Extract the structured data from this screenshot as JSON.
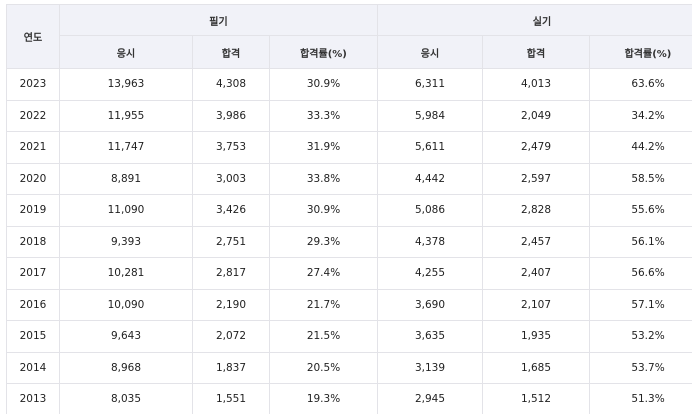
{
  "table": {
    "header": {
      "year": "연도",
      "written": "필기",
      "practical": "실기",
      "sub": [
        "응시",
        "합격",
        "합격률(%)",
        "응시",
        "합격",
        "합격률(%)"
      ]
    },
    "rows": [
      [
        "2023",
        "13,963",
        "4,308",
        "30.9%",
        "6,311",
        "4,013",
        "63.6%"
      ],
      [
        "2022",
        "11,955",
        "3,986",
        "33.3%",
        "5,984",
        "2,049",
        "34.2%"
      ],
      [
        "2021",
        "11,747",
        "3,753",
        "31.9%",
        "5,611",
        "2,479",
        "44.2%"
      ],
      [
        "2020",
        "8,891",
        "3,003",
        "33.8%",
        "4,442",
        "2,597",
        "58.5%"
      ],
      [
        "2019",
        "11,090",
        "3,426",
        "30.9%",
        "5,086",
        "2,828",
        "55.6%"
      ],
      [
        "2018",
        "9,393",
        "2,751",
        "29.3%",
        "4,378",
        "2,457",
        "56.1%"
      ],
      [
        "2017",
        "10,281",
        "2,817",
        "27.4%",
        "4,255",
        "2,407",
        "56.6%"
      ],
      [
        "2016",
        "10,090",
        "2,190",
        "21.7%",
        "3,690",
        "2,107",
        "57.1%"
      ],
      [
        "2015",
        "9,643",
        "2,072",
        "21.5%",
        "3,635",
        "1,935",
        "53.2%"
      ],
      [
        "2014",
        "8,968",
        "1,837",
        "20.5%",
        "3,139",
        "1,685",
        "53.7%"
      ],
      [
        "2013",
        "8,035",
        "1,551",
        "19.3%",
        "2,945",
        "1,512",
        "51.3%"
      ]
    ]
  },
  "colors": {
    "header_bg": "#f1f2f8",
    "border": "#e3e3e8",
    "text": "#222222"
  }
}
